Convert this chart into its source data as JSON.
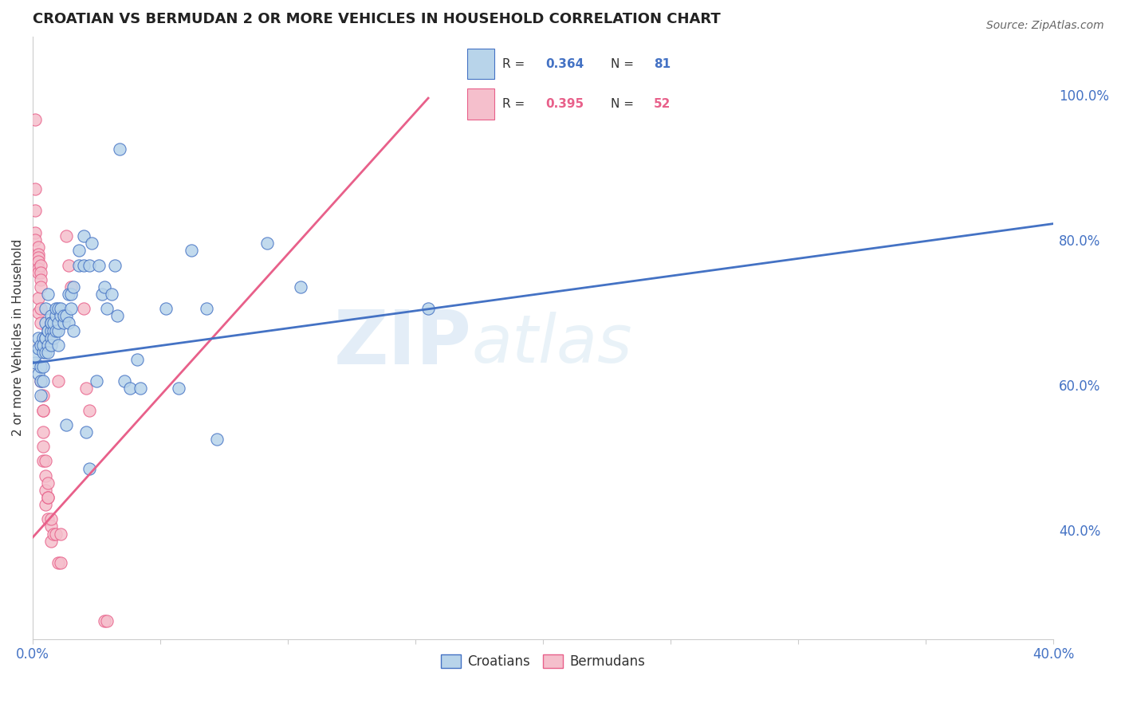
{
  "title": "CROATIAN VS BERMUDAN 2 OR MORE VEHICLES IN HOUSEHOLD CORRELATION CHART",
  "source": "Source: ZipAtlas.com",
  "ylabel": "2 or more Vehicles in Household",
  "yticks": [
    0.4,
    0.6,
    0.8,
    1.0
  ],
  "ytick_labels": [
    "40.0%",
    "60.0%",
    "80.0%",
    "100.0%"
  ],
  "xmin": 0.0,
  "xmax": 0.4,
  "ymin": 0.25,
  "ymax": 1.08,
  "watermark_zip": "ZIP",
  "watermark_atlas": "atlas",
  "croatian_color": "#b8d4ea",
  "bermudan_color": "#f5bfcc",
  "croatian_line_color": "#4472c4",
  "bermudan_line_color": "#e8608a",
  "croatian_scatter": [
    [
      0.001,
      0.63
    ],
    [
      0.001,
      0.64
    ],
    [
      0.002,
      0.65
    ],
    [
      0.002,
      0.615
    ],
    [
      0.002,
      0.665
    ],
    [
      0.003,
      0.625
    ],
    [
      0.003,
      0.655
    ],
    [
      0.003,
      0.585
    ],
    [
      0.003,
      0.605
    ],
    [
      0.004,
      0.645
    ],
    [
      0.004,
      0.665
    ],
    [
      0.004,
      0.605
    ],
    [
      0.004,
      0.625
    ],
    [
      0.004,
      0.655
    ],
    [
      0.005,
      0.685
    ],
    [
      0.005,
      0.665
    ],
    [
      0.005,
      0.645
    ],
    [
      0.005,
      0.705
    ],
    [
      0.005,
      0.665
    ],
    [
      0.006,
      0.675
    ],
    [
      0.006,
      0.655
    ],
    [
      0.006,
      0.725
    ],
    [
      0.006,
      0.645
    ],
    [
      0.006,
      0.675
    ],
    [
      0.007,
      0.675
    ],
    [
      0.007,
      0.695
    ],
    [
      0.007,
      0.665
    ],
    [
      0.007,
      0.655
    ],
    [
      0.007,
      0.685
    ],
    [
      0.007,
      0.685
    ],
    [
      0.008,
      0.675
    ],
    [
      0.008,
      0.685
    ],
    [
      0.008,
      0.665
    ],
    [
      0.009,
      0.675
    ],
    [
      0.009,
      0.695
    ],
    [
      0.009,
      0.705
    ],
    [
      0.01,
      0.675
    ],
    [
      0.01,
      0.685
    ],
    [
      0.01,
      0.705
    ],
    [
      0.01,
      0.655
    ],
    [
      0.011,
      0.695
    ],
    [
      0.011,
      0.705
    ],
    [
      0.012,
      0.685
    ],
    [
      0.012,
      0.695
    ],
    [
      0.013,
      0.545
    ],
    [
      0.013,
      0.695
    ],
    [
      0.014,
      0.685
    ],
    [
      0.014,
      0.725
    ],
    [
      0.015,
      0.705
    ],
    [
      0.015,
      0.725
    ],
    [
      0.016,
      0.675
    ],
    [
      0.016,
      0.735
    ],
    [
      0.018,
      0.765
    ],
    [
      0.018,
      0.785
    ],
    [
      0.02,
      0.805
    ],
    [
      0.02,
      0.765
    ],
    [
      0.021,
      0.535
    ],
    [
      0.022,
      0.485
    ],
    [
      0.022,
      0.765
    ],
    [
      0.023,
      0.795
    ],
    [
      0.025,
      0.605
    ],
    [
      0.026,
      0.765
    ],
    [
      0.027,
      0.725
    ],
    [
      0.028,
      0.735
    ],
    [
      0.029,
      0.705
    ],
    [
      0.031,
      0.725
    ],
    [
      0.032,
      0.765
    ],
    [
      0.033,
      0.695
    ],
    [
      0.034,
      0.925
    ],
    [
      0.036,
      0.605
    ],
    [
      0.038,
      0.595
    ],
    [
      0.041,
      0.635
    ],
    [
      0.042,
      0.595
    ],
    [
      0.052,
      0.705
    ],
    [
      0.057,
      0.595
    ],
    [
      0.062,
      0.785
    ],
    [
      0.068,
      0.705
    ],
    [
      0.072,
      0.525
    ],
    [
      0.092,
      0.795
    ],
    [
      0.105,
      0.735
    ],
    [
      0.155,
      0.705
    ]
  ],
  "bermudan_scatter": [
    [
      0.001,
      0.965
    ],
    [
      0.001,
      0.87
    ],
    [
      0.001,
      0.84
    ],
    [
      0.001,
      0.81
    ],
    [
      0.001,
      0.8
    ],
    [
      0.002,
      0.79
    ],
    [
      0.002,
      0.78
    ],
    [
      0.002,
      0.775
    ],
    [
      0.002,
      0.77
    ],
    [
      0.002,
      0.76
    ],
    [
      0.002,
      0.755
    ],
    [
      0.002,
      0.72
    ],
    [
      0.002,
      0.7
    ],
    [
      0.003,
      0.765
    ],
    [
      0.003,
      0.755
    ],
    [
      0.003,
      0.745
    ],
    [
      0.003,
      0.735
    ],
    [
      0.003,
      0.705
    ],
    [
      0.003,
      0.685
    ],
    [
      0.003,
      0.655
    ],
    [
      0.003,
      0.605
    ],
    [
      0.004,
      0.565
    ],
    [
      0.004,
      0.585
    ],
    [
      0.004,
      0.565
    ],
    [
      0.004,
      0.535
    ],
    [
      0.004,
      0.515
    ],
    [
      0.004,
      0.495
    ],
    [
      0.005,
      0.475
    ],
    [
      0.005,
      0.495
    ],
    [
      0.005,
      0.455
    ],
    [
      0.005,
      0.435
    ],
    [
      0.006,
      0.445
    ],
    [
      0.006,
      0.465
    ],
    [
      0.006,
      0.445
    ],
    [
      0.006,
      0.415
    ],
    [
      0.007,
      0.405
    ],
    [
      0.007,
      0.415
    ],
    [
      0.007,
      0.385
    ],
    [
      0.008,
      0.395
    ],
    [
      0.009,
      0.395
    ],
    [
      0.01,
      0.605
    ],
    [
      0.01,
      0.355
    ],
    [
      0.011,
      0.395
    ],
    [
      0.011,
      0.355
    ],
    [
      0.013,
      0.805
    ],
    [
      0.014,
      0.765
    ],
    [
      0.015,
      0.735
    ],
    [
      0.02,
      0.705
    ],
    [
      0.021,
      0.595
    ],
    [
      0.022,
      0.565
    ],
    [
      0.028,
      0.275
    ],
    [
      0.029,
      0.275
    ]
  ],
  "croatian_trendline": [
    [
      0.0,
      0.63
    ],
    [
      0.4,
      0.822
    ]
  ],
  "bermudan_trendline": [
    [
      0.0,
      0.39
    ],
    [
      0.155,
      0.995
    ]
  ]
}
